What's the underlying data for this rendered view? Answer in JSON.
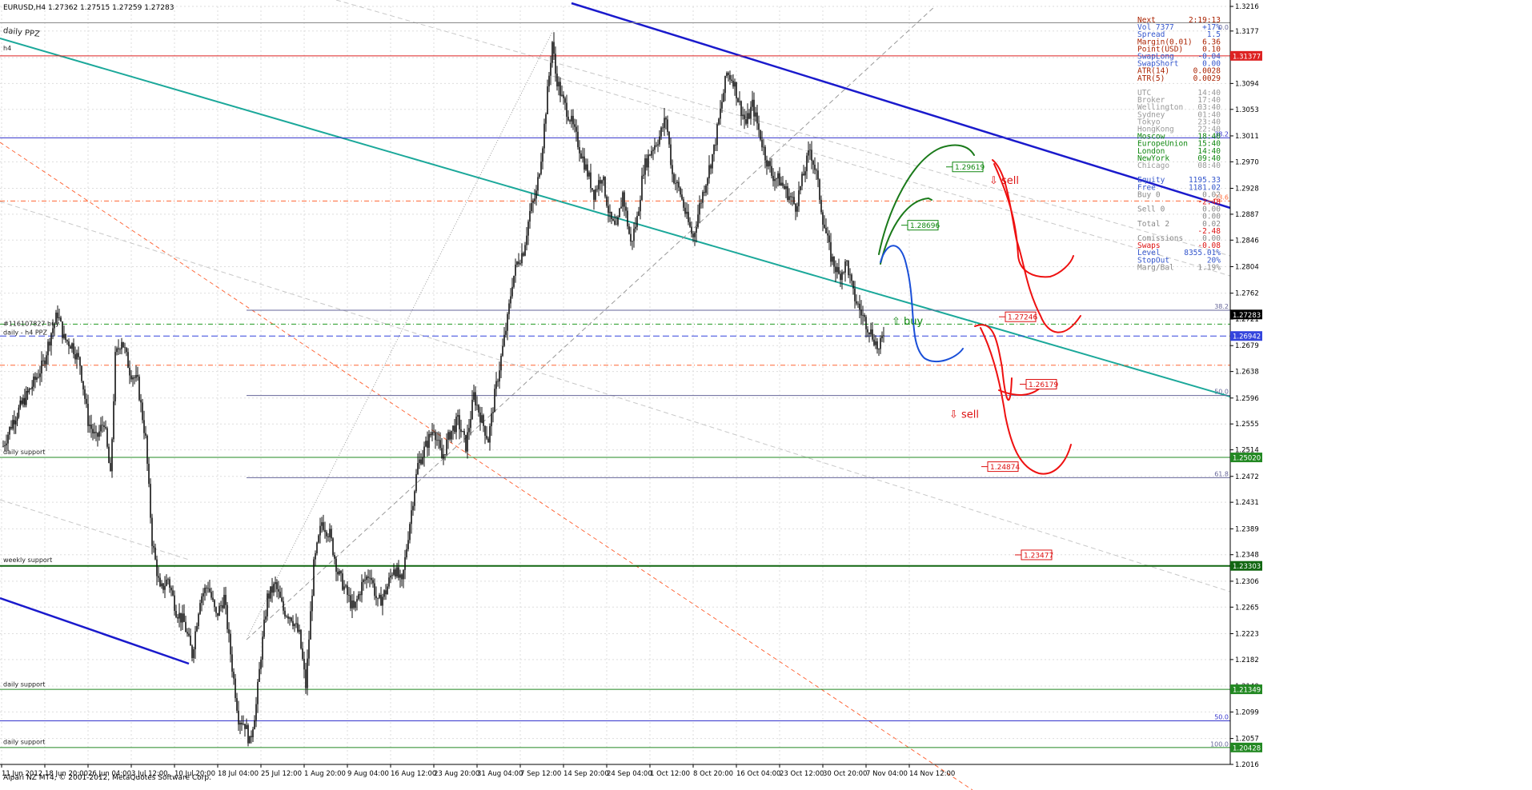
{
  "window": {
    "symbol_header": "EURUSD,H4  1.27362 1.27515 1.27259 1.27283",
    "copyright": "Alpari NZ MT4, © 2001-2012, MetaQuotes Software Corp."
  },
  "chart_data": {
    "type": "candlestick",
    "symbol": "EURUSD",
    "timeframe": "H4",
    "ohlc_last": {
      "open": 1.27362,
      "high": 1.27515,
      "low": 1.27259,
      "close": 1.27283
    },
    "y_range": [
      1.2016,
      1.3216
    ],
    "y_ticks": [
      "1.3216",
      "1.3177",
      "1.3135",
      "1.3094",
      "1.3053",
      "1.3011",
      "1.2970",
      "1.2928",
      "1.2887",
      "1.2846",
      "1.2804",
      "1.2762",
      "1.2721",
      "1.2679",
      "1.2638",
      "1.2596",
      "1.2555",
      "1.2514",
      "1.2472",
      "1.2431",
      "1.2389",
      "1.2348",
      "1.2306",
      "1.2265",
      "1.2223",
      "1.2182",
      "1.2140",
      "1.2099",
      "1.2057",
      "1.2016"
    ],
    "x_labels": [
      "11 Jun 2012",
      "18 Jun 20:00",
      "26 Jun 04:00",
      "3 Jul 12:00",
      "10 Jul 20:00",
      "18 Jul 04:00",
      "25 Jul 12:00",
      "1 Aug 20:00",
      "9 Aug 04:00",
      "16 Aug 12:00",
      "23 Aug 20:00",
      "31 Aug 04:00",
      "7 Sep 12:00",
      "14 Sep 20:00",
      "24 Sep 04:00",
      "1 Oct 12:00",
      "8 Oct 20:00",
      "16 Oct 04:00",
      "23 Oct 12:00",
      "30 Oct 20:00",
      "7 Nov 04:00",
      "14 Nov 12:00"
    ],
    "price_path": [
      [
        0,
        1.252
      ],
      [
        12,
        1.256
      ],
      [
        25,
        1.259
      ],
      [
        38,
        1.262
      ],
      [
        50,
        1.265
      ],
      [
        60,
        1.27
      ],
      [
        68,
        1.273
      ],
      [
        76,
        1.269
      ],
      [
        86,
        1.268
      ],
      [
        96,
        1.265
      ],
      [
        106,
        1.256
      ],
      [
        116,
        1.253
      ],
      [
        126,
        1.256
      ],
      [
        134,
        1.247
      ],
      [
        140,
        1.266
      ],
      [
        148,
        1.269
      ],
      [
        158,
        1.264
      ],
      [
        168,
        1.262
      ],
      [
        178,
        1.253
      ],
      [
        186,
        1.237
      ],
      [
        196,
        1.229
      ],
      [
        206,
        1.231
      ],
      [
        216,
        1.226
      ],
      [
        226,
        1.224
      ],
      [
        236,
        1.219
      ],
      [
        246,
        1.228
      ],
      [
        256,
        1.23
      ],
      [
        266,
        1.225
      ],
      [
        276,
        1.228
      ],
      [
        286,
        1.217
      ],
      [
        294,
        1.209
      ],
      [
        302,
        1.208
      ],
      [
        308,
        1.205
      ],
      [
        316,
        1.211
      ],
      [
        322,
        1.219
      ],
      [
        330,
        1.228
      ],
      [
        340,
        1.23
      ],
      [
        350,
        1.226
      ],
      [
        360,
        1.225
      ],
      [
        370,
        1.222
      ],
      [
        378,
        1.214
      ],
      [
        388,
        1.233
      ],
      [
        398,
        1.24
      ],
      [
        408,
        1.238
      ],
      [
        418,
        1.232
      ],
      [
        428,
        1.229
      ],
      [
        438,
        1.226
      ],
      [
        448,
        1.23
      ],
      [
        458,
        1.232
      ],
      [
        468,
        1.227
      ],
      [
        478,
        1.229
      ],
      [
        488,
        1.233
      ],
      [
        498,
        1.23
      ],
      [
        508,
        1.24
      ],
      [
        518,
        1.249
      ],
      [
        528,
        1.252
      ],
      [
        538,
        1.255
      ],
      [
        548,
        1.25
      ],
      [
        558,
        1.254
      ],
      [
        568,
        1.256
      ],
      [
        578,
        1.252
      ],
      [
        588,
        1.26
      ],
      [
        598,
        1.256
      ],
      [
        606,
        1.253
      ],
      [
        614,
        1.26
      ],
      [
        622,
        1.266
      ],
      [
        630,
        1.272
      ],
      [
        636,
        1.278
      ],
      [
        642,
        1.281
      ],
      [
        650,
        1.283
      ],
      [
        658,
        1.289
      ],
      [
        666,
        1.292
      ],
      [
        674,
        1.3
      ],
      [
        680,
        1.308
      ],
      [
        686,
        1.316
      ],
      [
        690,
        1.311
      ],
      [
        698,
        1.307
      ],
      [
        708,
        1.304
      ],
      [
        718,
        1.3
      ],
      [
        728,
        1.296
      ],
      [
        738,
        1.292
      ],
      [
        748,
        1.295
      ],
      [
        758,
        1.288
      ],
      [
        766,
        1.286
      ],
      [
        774,
        1.292
      ],
      [
        784,
        1.284
      ],
      [
        792,
        1.288
      ],
      [
        800,
        1.296
      ],
      [
        810,
        1.299
      ],
      [
        820,
        1.301
      ],
      [
        828,
        1.304
      ],
      [
        836,
        1.295
      ],
      [
        846,
        1.292
      ],
      [
        854,
        1.288
      ],
      [
        862,
        1.285
      ],
      [
        870,
        1.29
      ],
      [
        880,
        1.295
      ],
      [
        888,
        1.299
      ],
      [
        896,
        1.305
      ],
      [
        904,
        1.311
      ],
      [
        912,
        1.31
      ],
      [
        920,
        1.306
      ],
      [
        928,
        1.303
      ],
      [
        936,
        1.306
      ],
      [
        944,
        1.302
      ],
      [
        952,
        1.298
      ],
      [
        960,
        1.295
      ],
      [
        970,
        1.294
      ],
      [
        980,
        1.292
      ],
      [
        990,
        1.29
      ],
      [
        1000,
        1.295
      ],
      [
        1008,
        1.299
      ],
      [
        1016,
        1.295
      ],
      [
        1024,
        1.288
      ],
      [
        1034,
        1.282
      ],
      [
        1044,
        1.279
      ],
      [
        1054,
        1.281
      ],
      [
        1062,
        1.276
      ],
      [
        1072,
        1.273
      ],
      [
        1080,
        1.271
      ],
      [
        1088,
        1.269
      ],
      [
        1094,
        1.267
      ],
      [
        1100,
        1.27
      ],
      [
        1104,
        1.2728
      ]
    ],
    "horizontal_levels": [
      {
        "label": "1.31377",
        "price": 1.31377,
        "color": "#dd2222",
        "style": "solid"
      },
      {
        "label": "38.2",
        "price": 1.3008,
        "color": "#3333cc",
        "style": "solid"
      },
      {
        "label": "23.6",
        "price": 1.2908,
        "color": "#ff6633",
        "style": "dashdot"
      },
      {
        "label": "38.2",
        "price": 1.2735,
        "color": "#666699",
        "style": "solid"
      },
      {
        "label": "",
        "price": 1.2713,
        "color": "#229922",
        "style": "dashdot"
      },
      {
        "label": "1.26942",
        "price": 1.26942,
        "color": "#3344dd",
        "style": "dash"
      },
      {
        "label": "",
        "price": 1.2648,
        "color": "#ff6633",
        "style": "dashdot"
      },
      {
        "label": "50.0",
        "price": 1.26,
        "color": "#666699",
        "style": "solid"
      },
      {
        "label": "1.25020",
        "price": 1.2502,
        "color": "#228822",
        "style": "solid"
      },
      {
        "label": "61.8",
        "price": 1.247,
        "color": "#666699",
        "style": "solid"
      },
      {
        "label": "1.23303",
        "price": 1.23303,
        "color": "#116611",
        "style": "solid"
      },
      {
        "label": "1.21349",
        "price": 1.21349,
        "color": "#228822",
        "style": "solid"
      },
      {
        "label": "50.0",
        "price": 1.2085,
        "color": "#3333cc",
        "style": "solid"
      },
      {
        "label": "1.20428",
        "price": 1.20428,
        "color": "#228822",
        "style": "solid"
      },
      {
        "label": "",
        "price": 1.319,
        "color": "#888888",
        "style": "solid"
      }
    ],
    "current_price_label": "1.27283",
    "left_labels": [
      {
        "text": "daily PPZ",
        "price": 1.3178
      },
      {
        "text": "h4",
        "price": 1.315
      },
      {
        "text": "#116107827 buy",
        "price": 1.2714
      },
      {
        "text": "daily - h4 PPZ",
        "price": 1.27
      },
      {
        "text": "daily support",
        "price": 1.2511
      },
      {
        "text": "weekly support",
        "price": 1.234
      },
      {
        "text": "daily support",
        "price": 1.2143
      },
      {
        "text": "daily support",
        "price": 1.2052
      }
    ],
    "projection_boxes": [
      {
        "text": "1.29619",
        "color": "#118811",
        "x": 1190,
        "price": 1.29619
      },
      {
        "text": "1.28696",
        "color": "#118811",
        "x": 1134,
        "price": 1.28696
      },
      {
        "text": "1.27246",
        "color": "#dd1111",
        "x": 1256,
        "price": 1.27246
      },
      {
        "text": "1.26179",
        "color": "#dd1111",
        "x": 1282,
        "price": 1.26179
      },
      {
        "text": "1.24874",
        "color": "#dd1111",
        "x": 1234,
        "price": 1.24874
      },
      {
        "text": "1.23477",
        "color": "#dd1111",
        "x": 1276,
        "price": 1.23477
      }
    ],
    "annotations": [
      {
        "text": "⇩ sell",
        "color": "#dd1111",
        "x": 1236,
        "price": 1.2935
      },
      {
        "text": "⇧ buy",
        "color": "#118811",
        "x": 1114,
        "price": 1.2712
      },
      {
        "text": "⇩ sell",
        "color": "#dd1111",
        "x": 1186,
        "price": 1.2565
      }
    ],
    "fib_labels": [
      {
        "text": "0.0",
        "price": 1.3177
      },
      {
        "text": "100.0",
        "price": 1.2042
      }
    ]
  },
  "info_panel": {
    "rows": [
      {
        "k": "Next",
        "v": "2:19:13",
        "c": "#aa2200"
      },
      {
        "k": "Vol   7377",
        "v": "+17%",
        "c": "#3355cc"
      },
      {
        "k": "Spread",
        "v": "1.5",
        "c": "#3355cc"
      },
      {
        "k": "Margin(0.01)",
        "v": "6.36",
        "c": "#aa2200"
      },
      {
        "k": "Point(USD)",
        "v": "0.10",
        "c": "#aa2200"
      },
      {
        "k": "SwapLong",
        "v": "-0.04",
        "c": "#3355cc"
      },
      {
        "k": "SwapShort",
        "v": "0.00",
        "c": "#3355cc"
      },
      {
        "k": "ATR(14)",
        "v": "0.0028",
        "c": "#aa2200"
      },
      {
        "k": "ATR(5)",
        "v": "0.0029",
        "c": "#aa2200"
      },
      {
        "k": "",
        "v": "",
        "c": "#888888"
      },
      {
        "k": "UTC",
        "v": "14:40",
        "c": "#999999"
      },
      {
        "k": "Broker",
        "v": "17:40",
        "c": "#999999"
      },
      {
        "k": "Wellington",
        "v": "03:40",
        "c": "#999999"
      },
      {
        "k": "Sydney",
        "v": "01:40",
        "c": "#999999"
      },
      {
        "k": "Tokyo",
        "v": "23:40",
        "c": "#999999"
      },
      {
        "k": "HongKong",
        "v": "22:40",
        "c": "#999999"
      },
      {
        "k": "Moscow",
        "v": "18:40",
        "c": "#118811"
      },
      {
        "k": "EuropeUnion",
        "v": "15:40",
        "c": "#118811"
      },
      {
        "k": "London",
        "v": "14:40",
        "c": "#118811"
      },
      {
        "k": "NewYork",
        "v": "09:40",
        "c": "#118811"
      },
      {
        "k": "Chicago",
        "v": "08:40",
        "c": "#999999"
      },
      {
        "k": "",
        "v": "",
        "c": "#888888"
      },
      {
        "k": "Equity",
        "v": "1195.33",
        "c": "#3355cc"
      },
      {
        "k": "Free",
        "v": "1181.02",
        "c": "#3355cc"
      },
      {
        "k": "Buy      0",
        "v": "0.02",
        "c": "#888888"
      },
      {
        "k": "",
        "v": "-2.48",
        "c": "#dd1111"
      },
      {
        "k": "Sell     0",
        "v": "0.00",
        "c": "#888888"
      },
      {
        "k": "",
        "v": "0.00",
        "c": "#888888"
      },
      {
        "k": "Total    2",
        "v": "0.02",
        "c": "#888888"
      },
      {
        "k": "",
        "v": "-2.48",
        "c": "#dd1111"
      },
      {
        "k": "Comissions",
        "v": "0.00",
        "c": "#888888"
      },
      {
        "k": "Swaps",
        "v": "-0.08",
        "c": "#dd1111"
      },
      {
        "k": "Level",
        "v": "8355.01%",
        "c": "#3355cc"
      },
      {
        "k": "StopOut",
        "v": "20%",
        "c": "#3355cc"
      },
      {
        "k": "Marg/Bal",
        "v": "1.19%",
        "c": "#888888"
      }
    ]
  },
  "colors": {
    "candle": "#111111",
    "grid": "#cccccc",
    "channel_blue": "#1a1acc",
    "channel_teal": "#1ba89a",
    "path_green": "#1a7a1a",
    "path_blue": "#1a4fd8",
    "path_red": "#ee1111"
  }
}
